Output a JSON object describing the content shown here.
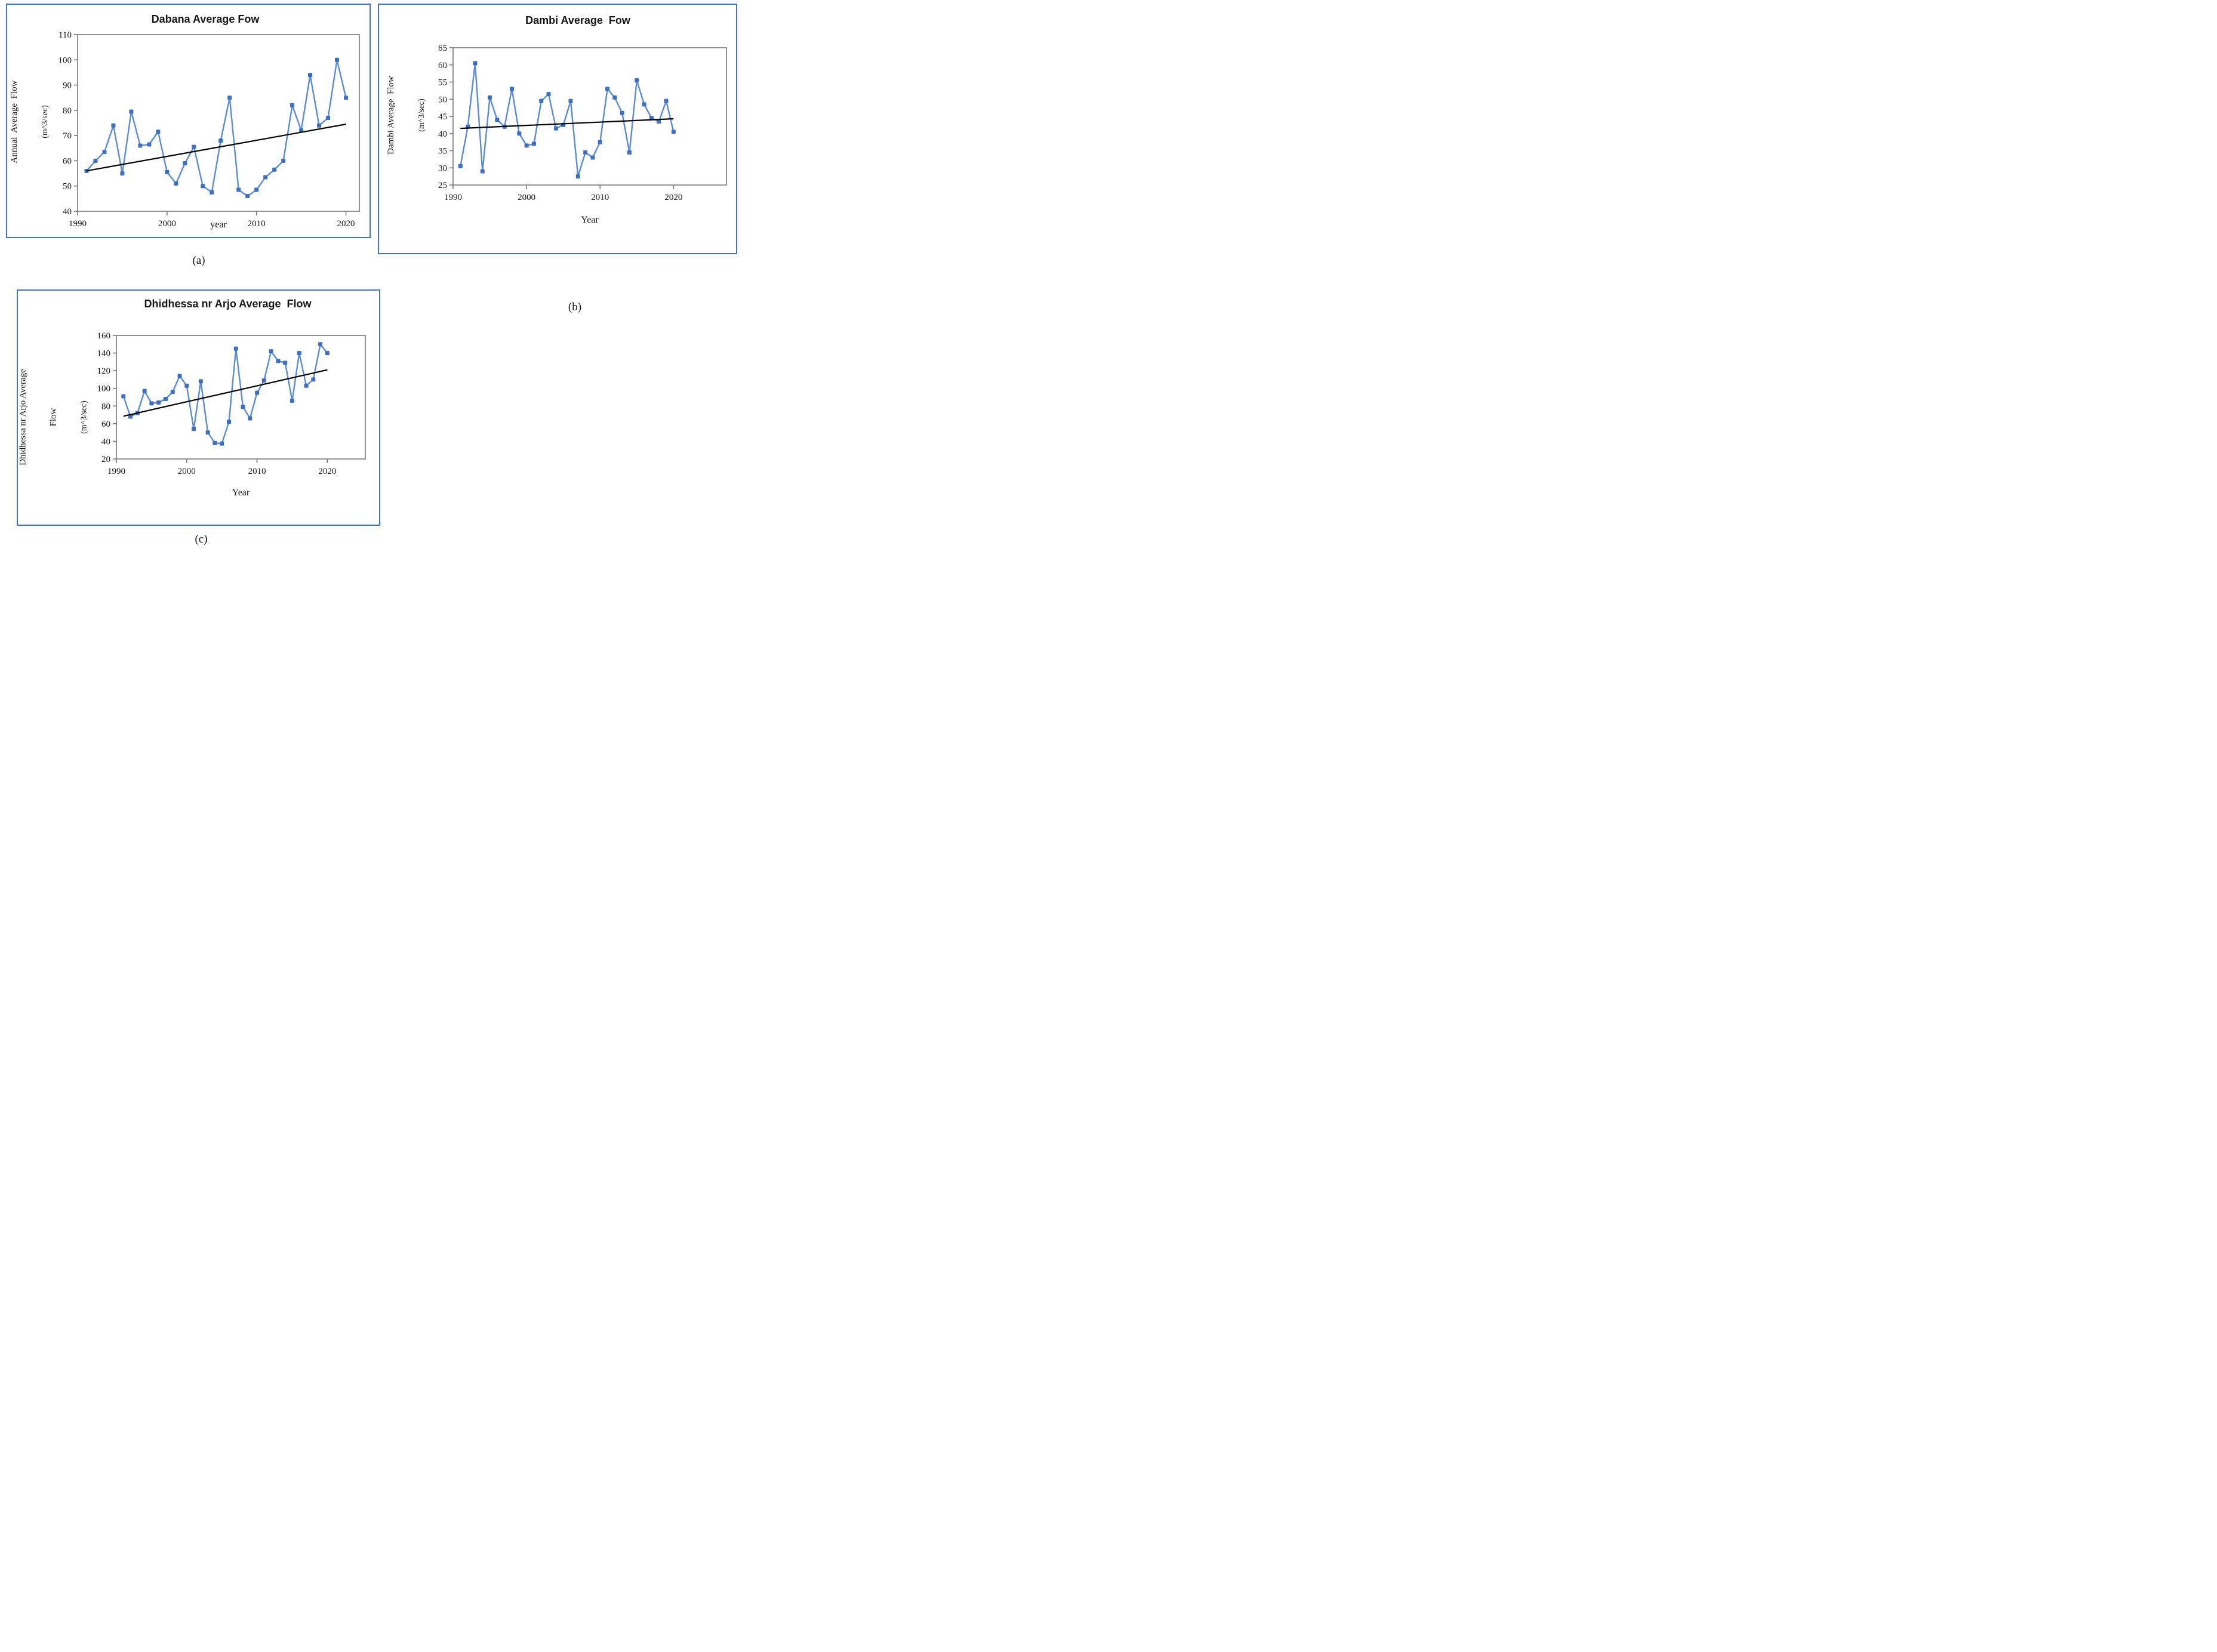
{
  "figure": {
    "description_labels": {
      "a": "(a)",
      "b": "(b)",
      "c": "(c)"
    }
  },
  "colors": {
    "box_border": "#4472c4",
    "plot_border": "#808080",
    "series_line": "#5b8bd5",
    "series_marker": "#3f6fbf",
    "trend": "#000000",
    "tick_text": "#1a1a1a"
  },
  "chart_data": [
    {
      "type": "line",
      "panel_label": "(a)",
      "title": "Dabana Average Fow",
      "xlabel": "year",
      "ylabel_lines": [
        "Annual  Average  Flow",
        "(m^3/sec)"
      ],
      "ylim": [
        40,
        110
      ],
      "ytick_step": 10,
      "xticks": [
        1990,
        2000,
        2010,
        2020
      ],
      "xlim": [
        1990,
        2021.5
      ],
      "grid": false,
      "legend": "none",
      "x": [
        1991,
        1992,
        1993,
        1994,
        1995,
        1996,
        1997,
        1998,
        1999,
        2000,
        2001,
        2002,
        2003,
        2004,
        2005,
        2006,
        2007,
        2008,
        2009,
        2010,
        2011,
        2012,
        2013,
        2014,
        2015,
        2016,
        2017,
        2018,
        2019,
        2020
      ],
      "values": [
        56,
        60,
        63.5,
        74,
        55,
        79.5,
        66,
        66.5,
        71.5,
        55.5,
        51,
        59,
        65.5,
        50,
        47.5,
        68,
        85,
        48.5,
        46,
        48.5,
        53.5,
        56.5,
        60,
        82,
        72,
        94,
        74,
        77,
        100,
        85
      ],
      "trend": {
        "x": [
          1991,
          2020
        ],
        "y": [
          56,
          74.5
        ]
      }
    },
    {
      "type": "line",
      "panel_label": "(b)",
      "title": "Dambi Average  Fow",
      "xlabel": "Year",
      "ylabel_lines": [
        "Dambi Average  Flow",
        "(m^3/sec)"
      ],
      "ylim": [
        25,
        65
      ],
      "ytick_step": 5,
      "xticks": [
        1990,
        2000,
        2010,
        2020
      ],
      "xlim": [
        1990,
        2027.2
      ],
      "grid": false,
      "legend": "none",
      "x": [
        1991,
        1992,
        1993,
        1994,
        1995,
        1996,
        1997,
        1998,
        1999,
        2000,
        2001,
        2002,
        2003,
        2004,
        2005,
        2006,
        2007,
        2008,
        2009,
        2010,
        2011,
        2012,
        2013,
        2014,
        2015,
        2016,
        2017,
        2018,
        2019,
        2020
      ],
      "values": [
        30.5,
        42,
        60.5,
        29,
        50.5,
        44,
        42,
        53,
        40,
        36.5,
        37,
        49.5,
        51.5,
        41.5,
        42.5,
        49.5,
        27.5,
        34.5,
        33,
        37.5,
        53,
        50.5,
        46,
        34.5,
        55.5,
        48.5,
        44.5,
        43.5,
        49.5,
        40.5
      ],
      "trend": {
        "x": [
          1991,
          2020
        ],
        "y": [
          41.5,
          44.3
        ]
      }
    },
    {
      "type": "line",
      "panel_label": "(c)",
      "title": "Dhidhessa nr Arjo Average  Flow",
      "xlabel": "Year",
      "ylabel_lines": [
        "Dhidhessa nr Arjo Average",
        "Flow",
        "(m^3/sec)"
      ],
      "ylim": [
        20,
        160
      ],
      "ytick_step": 20,
      "xticks": [
        1990,
        2000,
        2010,
        2020
      ],
      "xlim": [
        1990,
        2025.4
      ],
      "grid": false,
      "legend": "none",
      "x": [
        1991,
        1992,
        1993,
        1994,
        1995,
        1996,
        1997,
        1998,
        1999,
        2000,
        2001,
        2002,
        2003,
        2004,
        2005,
        2006,
        2007,
        2008,
        2009,
        2010,
        2011,
        2012,
        2013,
        2014,
        2015,
        2016,
        2017,
        2018,
        2019,
        2020
      ],
      "values": [
        91,
        68,
        72,
        97,
        83,
        84,
        88,
        96,
        114,
        103,
        54,
        108,
        50,
        38,
        37.5,
        62,
        145,
        79,
        66,
        95,
        109,
        142,
        131,
        129,
        86,
        140,
        103,
        110,
        150,
        140
      ],
      "trend": {
        "x": [
          1991,
          2020
        ],
        "y": [
          68.5,
          121
        ]
      }
    }
  ]
}
